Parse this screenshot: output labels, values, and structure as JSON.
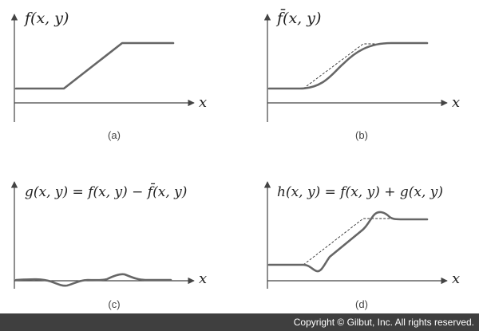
{
  "panels": [
    {
      "id": "a",
      "label": "f(x, y)",
      "x_label": "x",
      "caption": "(a)"
    },
    {
      "id": "b",
      "label": "f̄(x, y)",
      "x_label": "x",
      "caption": "(b)"
    },
    {
      "id": "c",
      "label": "g(x, y) = f(x, y) − f̄(x, y)",
      "x_label": "x",
      "caption": "(c)"
    },
    {
      "id": "d",
      "label": "h(x, y) = f(x, y) + g(x, y)",
      "x_label": "x",
      "caption": "(d)"
    }
  ],
  "footer": {
    "copyright": "Copyright © Gilbut, Inc. All rights reserved."
  }
}
